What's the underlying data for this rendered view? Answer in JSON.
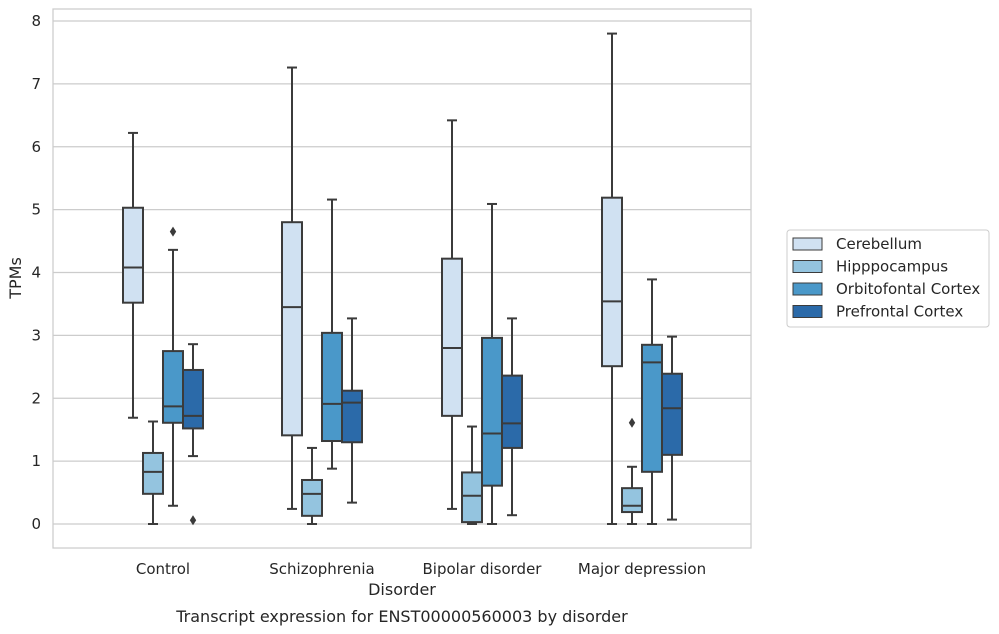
{
  "chart_data": {
    "type": "box",
    "caption": "Transcript expression for ENST00000560003 by disorder",
    "xlabel": "Disorder",
    "ylabel": "TPMs",
    "ylim": [
      -0.38,
      8.2
    ],
    "yticks": [
      0,
      1,
      2,
      3,
      4,
      5,
      6,
      7,
      8
    ],
    "grid": "horizontal",
    "legend_position": "right",
    "categories": [
      "Control",
      "Schizophrenia",
      "Bipolar disorder",
      "Major depression"
    ],
    "series": [
      {
        "name": "Cerebellum",
        "color": "#d0e1f2",
        "boxes": [
          {
            "whisker_low": 1.69,
            "q1": 3.52,
            "median": 4.08,
            "q3": 5.03,
            "whisker_high": 6.22,
            "outliers": []
          },
          {
            "whisker_low": 0.24,
            "q1": 1.41,
            "median": 3.45,
            "q3": 4.8,
            "whisker_high": 7.26,
            "outliers": []
          },
          {
            "whisker_low": 0.24,
            "q1": 1.72,
            "median": 2.8,
            "q3": 4.22,
            "whisker_high": 6.42,
            "outliers": []
          },
          {
            "whisker_low": 0.0,
            "q1": 2.51,
            "median": 3.54,
            "q3": 5.19,
            "whisker_high": 7.8,
            "outliers": []
          }
        ]
      },
      {
        "name": "Hipppocampus",
        "color": "#94c4df",
        "boxes": [
          {
            "whisker_low": 0.0,
            "q1": 0.48,
            "median": 0.83,
            "q3": 1.13,
            "whisker_high": 1.63,
            "outliers": []
          },
          {
            "whisker_low": 0.0,
            "q1": 0.13,
            "median": 0.48,
            "q3": 0.7,
            "whisker_high": 1.21,
            "outliers": []
          },
          {
            "whisker_low": 0.0,
            "q1": 0.03,
            "median": 0.45,
            "q3": 0.82,
            "whisker_high": 1.55,
            "outliers": []
          },
          {
            "whisker_low": 0.0,
            "q1": 0.19,
            "median": 0.29,
            "q3": 0.57,
            "whisker_high": 0.91,
            "outliers": [
              1.61
            ]
          }
        ]
      },
      {
        "name": "Orbitofontal Cortex",
        "color": "#4a98c9",
        "boxes": [
          {
            "whisker_low": 0.29,
            "q1": 1.61,
            "median": 1.87,
            "q3": 2.75,
            "whisker_high": 4.36,
            "outliers": [
              4.65
            ]
          },
          {
            "whisker_low": 0.88,
            "q1": 1.32,
            "median": 1.91,
            "q3": 3.04,
            "whisker_high": 5.16,
            "outliers": []
          },
          {
            "whisker_low": 0.0,
            "q1": 0.61,
            "median": 1.44,
            "q3": 2.96,
            "whisker_high": 5.09,
            "outliers": []
          },
          {
            "whisker_low": 0.0,
            "q1": 0.83,
            "median": 2.57,
            "q3": 2.85,
            "whisker_high": 3.89,
            "outliers": []
          }
        ]
      },
      {
        "name": "Prefrontal Cortex",
        "color": "#2b6aa9",
        "boxes": [
          {
            "whisker_low": 1.08,
            "q1": 1.52,
            "median": 1.72,
            "q3": 2.45,
            "whisker_high": 2.86,
            "outliers": [
              0.06
            ]
          },
          {
            "whisker_low": 0.34,
            "q1": 1.3,
            "median": 1.93,
            "q3": 2.12,
            "whisker_high": 3.27,
            "outliers": []
          },
          {
            "whisker_low": 0.14,
            "q1": 1.21,
            "median": 1.6,
            "q3": 2.36,
            "whisker_high": 3.27,
            "outliers": []
          },
          {
            "whisker_low": 0.07,
            "q1": 1.1,
            "median": 1.84,
            "q3": 2.39,
            "whisker_high": 2.98,
            "outliers": []
          }
        ]
      }
    ]
  }
}
